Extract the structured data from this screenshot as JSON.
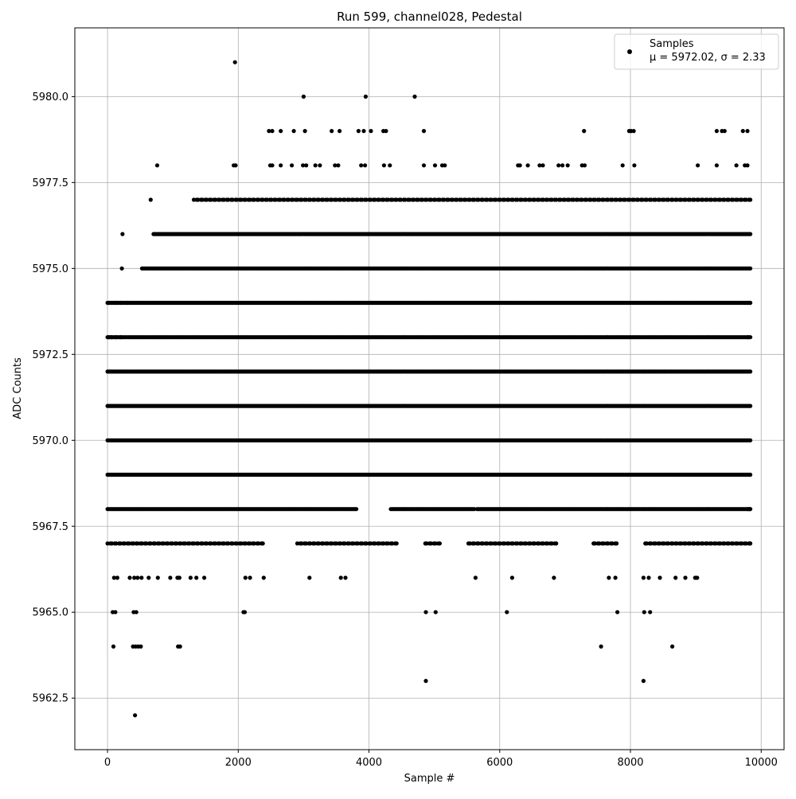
{
  "chart_data": {
    "type": "scatter",
    "title": "Run 599, channel028, Pedestal",
    "xlabel": "Sample #",
    "ylabel": "ADC Counts",
    "xlim": [
      -500,
      10350
    ],
    "ylim": [
      5961.0,
      5982.0
    ],
    "x_ticks": [
      0,
      2000,
      4000,
      6000,
      8000,
      10000
    ],
    "y_ticks": [
      5962.5,
      5965.0,
      5967.5,
      5970.0,
      5972.5,
      5975.0,
      5977.5,
      5980.0
    ],
    "x_tick_labels": [
      "0",
      "2000",
      "4000",
      "6000",
      "8000",
      "10000"
    ],
    "y_tick_labels": [
      "5962.5",
      "5965.0",
      "5967.5",
      "5970.0",
      "5972.5",
      "5975.0",
      "5977.5",
      "5980.0"
    ],
    "grid": true,
    "legend_position": "top-right",
    "marker_color": "#000000",
    "series": [
      {
        "name": "Samples",
        "stats_label": "μ = 5972.02, σ = 2.33",
        "mean": 5972.02,
        "sigma": 2.33,
        "points": [
          [
            1950,
            5981
          ],
          [
            3000,
            5980
          ],
          [
            3950,
            5980
          ],
          [
            4700,
            5980
          ],
          [
            2470,
            5979
          ],
          [
            2520,
            5979
          ],
          [
            2650,
            5979
          ],
          [
            2850,
            5979
          ],
          [
            3020,
            5979
          ],
          [
            3430,
            5979
          ],
          [
            3550,
            5979
          ],
          [
            3840,
            5979
          ],
          [
            3920,
            5979
          ],
          [
            4030,
            5979
          ],
          [
            4220,
            5979
          ],
          [
            4260,
            5979
          ],
          [
            4840,
            5979
          ],
          [
            7290,
            5979
          ],
          [
            7980,
            5979
          ],
          [
            8010,
            5979
          ],
          [
            8050,
            5979
          ],
          [
            9320,
            5979
          ],
          [
            9400,
            5979
          ],
          [
            9440,
            5979
          ],
          [
            9720,
            5979
          ],
          [
            9790,
            5979
          ],
          [
            760,
            5978
          ],
          [
            1930,
            5978
          ],
          [
            1960,
            5978
          ],
          [
            2490,
            5978
          ],
          [
            2520,
            5978
          ],
          [
            2650,
            5978
          ],
          [
            2820,
            5978
          ],
          [
            2990,
            5978
          ],
          [
            3040,
            5978
          ],
          [
            3180,
            5978
          ],
          [
            3250,
            5978
          ],
          [
            3480,
            5978
          ],
          [
            3530,
            5978
          ],
          [
            3880,
            5978
          ],
          [
            3940,
            5978
          ],
          [
            4230,
            5978
          ],
          [
            4320,
            5978
          ],
          [
            4840,
            5978
          ],
          [
            5010,
            5978
          ],
          [
            5120,
            5978
          ],
          [
            5160,
            5978
          ],
          [
            6280,
            5978
          ],
          [
            6310,
            5978
          ],
          [
            6430,
            5978
          ],
          [
            6610,
            5978
          ],
          [
            6660,
            5978
          ],
          [
            6900,
            5978
          ],
          [
            6960,
            5978
          ],
          [
            7040,
            5978
          ],
          [
            7260,
            5978
          ],
          [
            7300,
            5978
          ],
          [
            7880,
            5978
          ],
          [
            8060,
            5978
          ],
          [
            9030,
            5978
          ],
          [
            9320,
            5978
          ],
          [
            9620,
            5978
          ],
          [
            9750,
            5978
          ],
          [
            9790,
            5978
          ],
          [
            230,
            5976
          ],
          [
            5630,
            5966
          ],
          [
            6190,
            5966
          ],
          [
            6830,
            5966
          ],
          [
            7670,
            5966
          ],
          [
            7770,
            5966
          ],
          [
            8200,
            5966
          ],
          [
            8280,
            5966
          ],
          [
            8450,
            5966
          ],
          [
            8690,
            5966
          ],
          [
            8840,
            5966
          ],
          [
            8990,
            5966
          ],
          [
            9020,
            5966
          ],
          [
            100,
            5966
          ],
          [
            150,
            5966
          ],
          [
            340,
            5966
          ],
          [
            410,
            5966
          ],
          [
            460,
            5966
          ],
          [
            520,
            5966
          ],
          [
            630,
            5966
          ],
          [
            770,
            5966
          ],
          [
            960,
            5966
          ],
          [
            1070,
            5966
          ],
          [
            1100,
            5966
          ],
          [
            1270,
            5966
          ],
          [
            1360,
            5966
          ],
          [
            1480,
            5966
          ],
          [
            2110,
            5966
          ],
          [
            2180,
            5966
          ],
          [
            2390,
            5966
          ],
          [
            3090,
            5966
          ],
          [
            3570,
            5966
          ],
          [
            3640,
            5966
          ],
          [
            80,
            5965
          ],
          [
            120,
            5965
          ],
          [
            400,
            5965
          ],
          [
            440,
            5965
          ],
          [
            2080,
            5965
          ],
          [
            2100,
            5965
          ],
          [
            4870,
            5965
          ],
          [
            5020,
            5965
          ],
          [
            6110,
            5965
          ],
          [
            7800,
            5965
          ],
          [
            8210,
            5965
          ],
          [
            8300,
            5965
          ],
          [
            90,
            5964
          ],
          [
            390,
            5964
          ],
          [
            430,
            5964
          ],
          [
            470,
            5964
          ],
          [
            510,
            5964
          ],
          [
            1080,
            5964
          ],
          [
            1110,
            5964
          ],
          [
            7550,
            5964
          ],
          [
            8640,
            5964
          ],
          [
            4870,
            5963
          ],
          [
            8200,
            5963
          ],
          [
            420,
            5962
          ],
          [
            20,
            5974
          ],
          [
            130,
            5974
          ],
          [
            200,
            5974
          ],
          [
            300,
            5974
          ],
          [
            9760,
            5974
          ],
          [
            9800,
            5974
          ],
          [
            9830,
            5974
          ],
          [
            20,
            5973
          ],
          [
            60,
            5973
          ],
          [
            130,
            5973
          ],
          [
            200,
            5973
          ],
          [
            9800,
            5973
          ],
          [
            9830,
            5968
          ],
          [
            9800,
            5968
          ],
          [
            9830,
            5967
          ]
        ]
      }
    ],
    "dense_rows": {
      "levels": [
        5967,
        5968,
        5969,
        5970,
        5971,
        5972,
        5973,
        5974,
        5975,
        5976,
        5977
      ],
      "x_range": [
        0,
        9840
      ],
      "gaps": {
        "5977": [
          [
            0,
            640
          ],
          [
            700,
            1300
          ]
        ],
        "5976": [
          [
            0,
            700
          ]
        ],
        "5975": [
          [
            0,
            200
          ],
          [
            240,
            520
          ]
        ],
        "5968": [
          [
            3820,
            4330
          ],
          [
            5620,
            5640
          ]
        ],
        "5967": [
          [
            2420,
            2900
          ],
          [
            4450,
            4850
          ],
          [
            5100,
            5500
          ],
          [
            6900,
            7400
          ],
          [
            7800,
            8200
          ]
        ]
      }
    }
  }
}
